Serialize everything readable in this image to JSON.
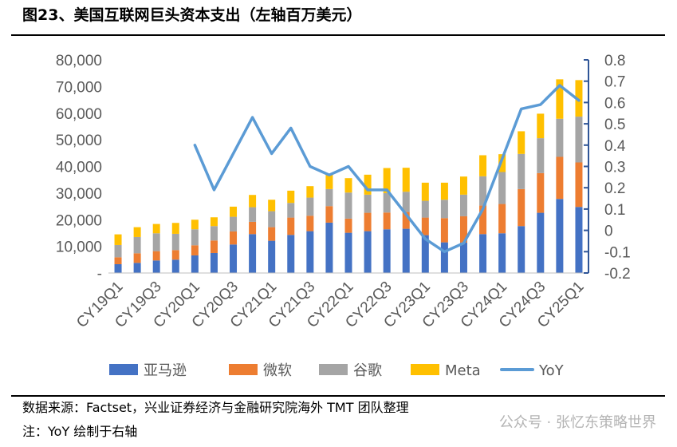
{
  "header": {
    "title": "图23、美国互联网巨头资本支出（左轴百万美元）"
  },
  "footer": {
    "source": "数据来源：Factset，兴业证券经济与金融研究院海外 TMT 团队整理",
    "note": "注：YoY 绘制于右轴",
    "watermark": "公众号 · 张忆东策略世界"
  },
  "colors": {
    "amazon": "#4472C4",
    "microsoft": "#ED7D31",
    "google": "#A5A5A5",
    "meta": "#FFC000",
    "yoy": "#5B9BD5"
  },
  "chart_data": {
    "type": "bar",
    "stacked": true,
    "categories": [
      "CY19Q1",
      "CY19Q2",
      "CY19Q3",
      "CY19Q4",
      "CY20Q1",
      "CY20Q2",
      "CY20Q3",
      "CY20Q4",
      "CY21Q1",
      "CY21Q2",
      "CY21Q3",
      "CY21Q4",
      "CY22Q1",
      "CY22Q2",
      "CY22Q3",
      "CY22Q4",
      "CY23Q1",
      "CY23Q2",
      "CY23Q3",
      "CY23Q4",
      "CY24Q1",
      "CY24Q2",
      "CY24Q3",
      "CY24Q4",
      "CY25Q1"
    ],
    "x_tick_labels": [
      "CY19Q1",
      "CY19Q3",
      "CY20Q1",
      "CY20Q3",
      "CY21Q1",
      "CY21Q3",
      "CY22Q1",
      "CY22Q3",
      "CY23Q1",
      "CY23Q3",
      "CY24Q1",
      "CY24Q3",
      "CY25Q1"
    ],
    "series": [
      {
        "name": "亚马逊",
        "color": "#4472C4",
        "values": [
          3300,
          3800,
          4700,
          5000,
          6600,
          7500,
          10700,
          14600,
          12100,
          14300,
          15700,
          18900,
          15100,
          15700,
          16400,
          16600,
          14200,
          11500,
          11400,
          14600,
          14900,
          17600,
          22600,
          27800,
          24800
        ]
      },
      {
        "name": "微软",
        "color": "#ED7D31",
        "values": [
          2600,
          3600,
          3500,
          3600,
          3800,
          4700,
          4900,
          4600,
          5100,
          6500,
          5800,
          6200,
          5300,
          6900,
          6300,
          6300,
          6600,
          9100,
          9900,
          10700,
          11000,
          13900,
          14900,
          15800,
          16700
        ]
      },
      {
        "name": "谷歌",
        "color": "#A5A5A5",
        "values": [
          4600,
          6100,
          6700,
          6100,
          6000,
          5400,
          5500,
          5500,
          6000,
          5500,
          6800,
          6400,
          9800,
          6800,
          7300,
          7600,
          6300,
          6900,
          8100,
          11000,
          12000,
          13200,
          13100,
          14300,
          17200
        ]
      },
      {
        "name": "Meta",
        "color": "#FFC000",
        "values": [
          4000,
          3700,
          3500,
          4100,
          3600,
          3300,
          3800,
          4600,
          4300,
          4600,
          4300,
          5500,
          5400,
          7500,
          9400,
          9000,
          6800,
          6400,
          6800,
          7900,
          6700,
          8500,
          9200,
          14800,
          13700
        ]
      }
    ],
    "line_series": {
      "name": "YoY",
      "axis": "right",
      "color": "#5B9BD5",
      "values": [
        null,
        null,
        null,
        null,
        0.4,
        0.19,
        null,
        0.53,
        0.36,
        0.48,
        0.3,
        0.26,
        0.3,
        0.19,
        0.19,
        null,
        -0.04,
        -0.1,
        -0.06,
        0.1,
        null,
        0.57,
        0.59,
        0.68,
        0.61
      ]
    },
    "y_left": {
      "ylim": [
        0,
        80000
      ],
      "ticks": [
        0,
        10000,
        20000,
        30000,
        40000,
        50000,
        60000,
        70000,
        80000
      ],
      "tick_labels": [
        "-",
        "10,000",
        "20,000",
        "30,000",
        "40,000",
        "50,000",
        "60,000",
        "70,000",
        "80,000"
      ]
    },
    "y_right": {
      "ylim": [
        -0.2,
        0.8
      ],
      "ticks": [
        -0.2,
        -0.1,
        0,
        0.1,
        0.2,
        0.3,
        0.4,
        0.5,
        0.6,
        0.7,
        0.8
      ],
      "tick_labels": [
        "-0.2",
        "-0.1",
        "0",
        "0.1",
        "0.2",
        "0.3",
        "0.4",
        "0.5",
        "0.6",
        "0.7",
        "0.8"
      ]
    },
    "legend": [
      "亚马逊",
      "微软",
      "谷歌",
      "Meta",
      "YoY"
    ],
    "legend_position": "bottom",
    "grid": false
  }
}
